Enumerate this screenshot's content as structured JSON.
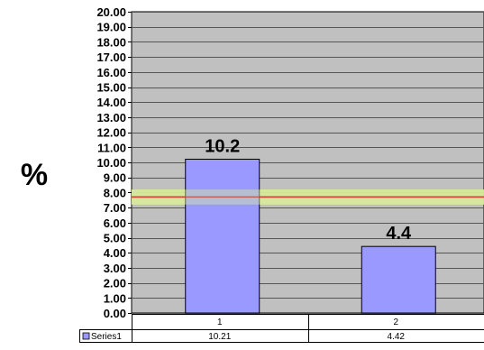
{
  "chart_data": {
    "type": "bar",
    "ylabel": "%",
    "ylim": [
      0,
      20
    ],
    "ytick_step": 1,
    "ytick_format_decimals": 2,
    "grid": true,
    "categories": [
      "1",
      "2"
    ],
    "series": [
      {
        "name": "Series1",
        "values": [
          10.21,
          4.42
        ],
        "color": "#9999ff"
      }
    ],
    "data_labels": [
      "10.2",
      "4.4"
    ],
    "table_values": [
      "10.21",
      "4.42"
    ],
    "reference_band": {
      "y": 7.7,
      "low": 7.2,
      "high": 8.2,
      "line_color": "#cc3333",
      "band_color": "#d7ea9c"
    },
    "plot_background": "#c0c0c0",
    "legend_in_table": true
  }
}
